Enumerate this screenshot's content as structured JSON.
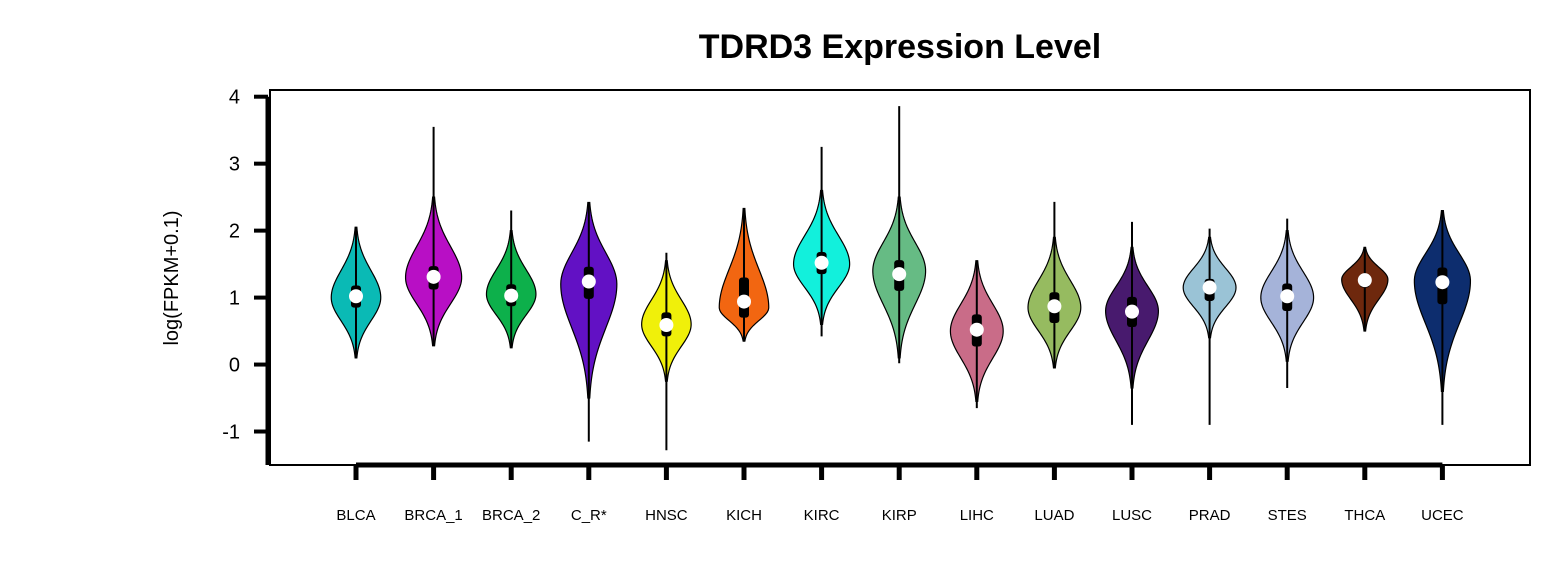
{
  "chart_data": {
    "type": "violin",
    "title": "TDRD3 Expression Level",
    "ylabel": "log(FPKM+0.1)",
    "xlabel": "",
    "ylim": [
      -1.5,
      4.1
    ],
    "yticks": [
      -1,
      0,
      1,
      2,
      3,
      4
    ],
    "grid": false,
    "legend": "none",
    "categories": [
      "BLCA",
      "BRCA_1",
      "BRCA_2",
      "C_R*",
      "HNSC",
      "KICH",
      "KIRC",
      "KIRP",
      "LIHC",
      "LUAD",
      "LUSC",
      "PRAD",
      "STES",
      "THCA",
      "UCEC"
    ],
    "series": [
      {
        "category": "BLCA",
        "color": "#0ABAB5",
        "median": 1.02,
        "q1": 0.85,
        "q3": 1.18,
        "whisker_low": 0.1,
        "whisker_high": 2.05,
        "body_low": 0.1,
        "body_high": 2.05,
        "mode": 1.0,
        "width": 0.75
      },
      {
        "category": "BRCA_1",
        "color": "#B80FC5",
        "median": 1.31,
        "q1": 1.12,
        "q3": 1.47,
        "whisker_low": 0.28,
        "whisker_high": 3.55,
        "body_low": 0.28,
        "body_high": 2.5,
        "mode": 1.3,
        "width": 0.85
      },
      {
        "category": "BRCA_2",
        "color": "#0DB04B",
        "median": 1.03,
        "q1": 0.87,
        "q3": 1.2,
        "whisker_low": 0.25,
        "whisker_high": 2.3,
        "body_low": 0.25,
        "body_high": 2.0,
        "mode": 1.05,
        "width": 0.75
      },
      {
        "category": "C_R*",
        "color": "#6211C4",
        "median": 1.24,
        "q1": 0.98,
        "q3": 1.46,
        "whisker_low": -1.15,
        "whisker_high": 2.42,
        "body_low": -0.5,
        "body_high": 2.42,
        "mode": 1.2,
        "width": 0.85
      },
      {
        "category": "HNSC",
        "color": "#F0F00A",
        "median": 0.59,
        "q1": 0.42,
        "q3": 0.78,
        "whisker_low": -1.28,
        "whisker_high": 1.67,
        "body_low": -0.25,
        "body_high": 1.55,
        "mode": 0.6,
        "width": 0.75
      },
      {
        "category": "KICH",
        "color": "#F26611",
        "median": 0.94,
        "q1": 0.7,
        "q3": 1.3,
        "whisker_low": 0.35,
        "whisker_high": 2.33,
        "body_low": 0.35,
        "body_high": 2.33,
        "mode": 0.85,
        "width": 0.75
      },
      {
        "category": "KIRC",
        "color": "#12F0DC",
        "median": 1.52,
        "q1": 1.35,
        "q3": 1.68,
        "whisker_low": 0.42,
        "whisker_high": 3.25,
        "body_low": 0.6,
        "body_high": 2.6,
        "mode": 1.5,
        "width": 0.85
      },
      {
        "category": "KIRP",
        "color": "#66BB84",
        "median": 1.35,
        "q1": 1.1,
        "q3": 1.56,
        "whisker_low": 0.02,
        "whisker_high": 3.86,
        "body_low": 0.1,
        "body_high": 2.5,
        "mode": 1.4,
        "width": 0.8
      },
      {
        "category": "LIHC",
        "color": "#C96C88",
        "median": 0.52,
        "q1": 0.27,
        "q3": 0.75,
        "whisker_low": -0.65,
        "whisker_high": 1.55,
        "body_low": -0.55,
        "body_high": 1.55,
        "mode": 0.5,
        "width": 0.8
      },
      {
        "category": "LUAD",
        "color": "#96BB60",
        "median": 0.87,
        "q1": 0.62,
        "q3": 1.08,
        "whisker_low": -0.05,
        "whisker_high": 2.43,
        "body_low": -0.05,
        "body_high": 1.9,
        "mode": 0.85,
        "width": 0.8
      },
      {
        "category": "LUSC",
        "color": "#481A6E",
        "median": 0.79,
        "q1": 0.56,
        "q3": 1.01,
        "whisker_low": -0.9,
        "whisker_high": 2.13,
        "body_low": -0.35,
        "body_high": 1.75,
        "mode": 0.8,
        "width": 0.8
      },
      {
        "category": "PRAD",
        "color": "#9AC3D6",
        "median": 1.15,
        "q1": 0.95,
        "q3": 1.28,
        "whisker_low": -0.9,
        "whisker_high": 2.03,
        "body_low": 0.4,
        "body_high": 1.9,
        "mode": 1.15,
        "width": 0.8
      },
      {
        "category": "STES",
        "color": "#A5B3D9",
        "median": 1.02,
        "q1": 0.8,
        "q3": 1.21,
        "whisker_low": -0.35,
        "whisker_high": 2.18,
        "body_low": 0.05,
        "body_high": 2.0,
        "mode": 1.0,
        "width": 0.8
      },
      {
        "category": "THCA",
        "color": "#6E280D",
        "median": 1.26,
        "q1": 1.15,
        "q3": 1.36,
        "whisker_low": 0.5,
        "whisker_high": 1.75,
        "body_low": 0.5,
        "body_high": 1.75,
        "mode": 1.27,
        "width": 0.7
      },
      {
        "category": "UCEC",
        "color": "#0D2D6E",
        "median": 1.23,
        "q1": 0.9,
        "q3": 1.45,
        "whisker_low": -0.9,
        "whisker_high": 2.3,
        "body_low": -0.4,
        "body_high": 2.3,
        "mode": 1.25,
        "width": 0.85
      }
    ]
  }
}
